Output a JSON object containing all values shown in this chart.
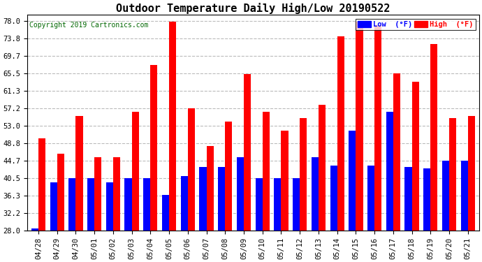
{
  "title": "Outdoor Temperature Daily High/Low 20190522",
  "copyright": "Copyright 2019 Cartronics.com",
  "legend_low": "Low  (°F)",
  "legend_high": "High  (°F)",
  "categories": [
    "04/28",
    "04/29",
    "04/30",
    "05/01",
    "05/02",
    "05/03",
    "05/04",
    "05/05",
    "05/06",
    "05/07",
    "05/08",
    "05/09",
    "05/10",
    "05/11",
    "05/12",
    "05/13",
    "05/14",
    "05/15",
    "05/16",
    "05/17",
    "05/18",
    "05/19",
    "05/20",
    "05/21"
  ],
  "high_values": [
    50.0,
    46.4,
    55.4,
    45.5,
    45.5,
    56.3,
    67.5,
    77.9,
    57.2,
    48.2,
    54.1,
    65.3,
    56.3,
    51.8,
    54.9,
    58.1,
    74.3,
    77.9,
    77.0,
    65.5,
    63.5,
    72.5,
    54.9,
    55.4
  ],
  "low_values": [
    28.5,
    39.5,
    40.5,
    40.5,
    39.5,
    40.5,
    40.5,
    36.5,
    41.0,
    43.2,
    43.2,
    45.5,
    40.5,
    40.5,
    40.5,
    45.5,
    43.5,
    51.8,
    43.5,
    56.3,
    43.2,
    42.8,
    44.7,
    44.7
  ],
  "ylim_min": 28.0,
  "ylim_max": 79.5,
  "yticks": [
    28.0,
    32.2,
    36.3,
    40.5,
    44.7,
    48.8,
    53.0,
    57.2,
    61.3,
    65.5,
    69.7,
    73.8,
    78.0
  ],
  "bar_width": 0.38,
  "high_color": "#ff0000",
  "low_color": "#0000ff",
  "bg_color": "#ffffff",
  "grid_color": "#bbbbbb",
  "title_fontsize": 11,
  "copyright_fontsize": 7,
  "tick_fontsize": 7.5
}
